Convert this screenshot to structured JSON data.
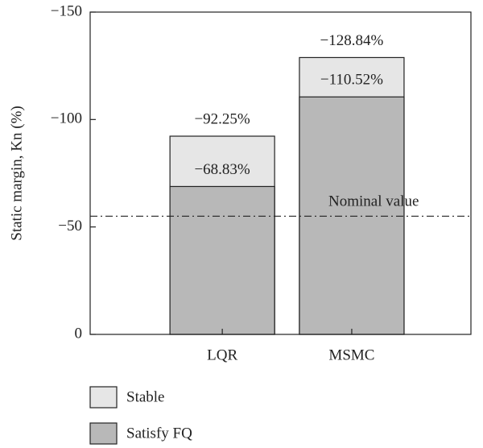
{
  "chart_data": {
    "type": "bar",
    "categories": [
      "LQR",
      "MSMC"
    ],
    "series": [
      {
        "name": "Stable",
        "color": "#e6e6e6",
        "values": [
          -92.25,
          -128.84
        ],
        "value_labels": [
          "−92.25%",
          "−128.84%"
        ]
      },
      {
        "name": "Satisfy FQ",
        "color": "#b8b8b8",
        "values": [
          -68.83,
          -110.52
        ],
        "value_labels": [
          "−68.83%",
          "−110.52%"
        ]
      }
    ],
    "y_label": "Static margin, Kn (%)",
    "ylim": [
      0,
      -150
    ],
    "yticks": [
      {
        "value": 0,
        "label": "0"
      },
      {
        "value": -50,
        "label": "−50"
      },
      {
        "value": -100,
        "label": "−100"
      },
      {
        "value": -150,
        "label": "−150"
      }
    ],
    "reference_line": {
      "value": -55,
      "label": "Nominal value"
    },
    "legend": "bottom-left",
    "overlap": true
  }
}
